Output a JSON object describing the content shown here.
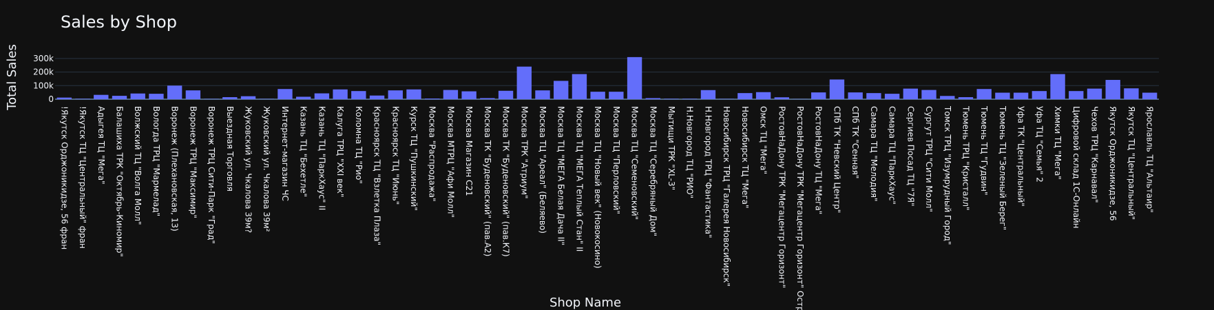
{
  "chart_data": {
    "type": "bar",
    "title": "Sales by Shop",
    "xlabel": "Shop Name",
    "ylabel": "Total Sales",
    "ylim": [
      0,
      355000
    ],
    "yticks": [
      0,
      100000,
      200000,
      300000
    ],
    "yticklabels": [
      "0",
      "100k",
      "200k",
      "300k"
    ],
    "colors": {
      "bar": "#636efa",
      "background": "#111111",
      "grid": "#283442",
      "text": "#f2f5fa"
    },
    "categories": [
      "!Якутск Орджоникидзе, 56 фран",
      "!Якутск ТЦ \"Центральный\" фран",
      "Адыгея ТЦ \"Мега\"",
      "Балашиха ТРК \"Октябрь-Киномир\"",
      "Волжский ТЦ \"Волга Молл\"",
      "Вологда ТРЦ \"Мармелад\"",
      "Воронеж (Плехановская, 13)",
      "Воронеж ТРЦ \"Максимир\"",
      "Воронеж ТРЦ Сити-Парк \"Град\"",
      "Выездная Торговля",
      "Жуковский ул. Чкалова 39м?",
      "Жуковский ул. Чкалова 39м²",
      "Интернет-магазин ЧС",
      "Казань ТЦ \"Бехетле\"",
      "Казань ТЦ \"ПаркХаус\" II",
      "Калуга ТРЦ \"XXI век\"",
      "Коломна ТЦ \"Рио\"",
      "Красноярск ТЦ \"Взлетка Плаза\"",
      "Красноярск ТЦ \"Июнь\"",
      "Курск ТЦ \"Пушкинский\"",
      "Москва \"Распродажа\"",
      "Москва МТРЦ \"Афи Молл\"",
      "Москва Магазин С21",
      "Москва ТК \"Буденовский\" (пав.А2)",
      "Москва ТК \"Буденовский\" (пав.К7)",
      "Москва ТРК \"Атриум\"",
      "Москва ТЦ \"Ареал\" (Беляево)",
      "Москва ТЦ \"МЕГА Белая Дача II\"",
      "Москва ТЦ \"МЕГА Теплый Стан\" II",
      "Москва ТЦ \"Новый век\" (Новокосино)",
      "Москва ТЦ \"Перловский\"",
      "Москва ТЦ \"Семеновский\"",
      "Москва ТЦ \"Серебряный Дом\"",
      "Мытищи ТРК \"XL-3\"",
      "Н.Новгород ТЦ \"РИО\"",
      "Н.Новгород ТРЦ \"Фантастика\"",
      "Новосибирск ТРЦ \"Галерея Новосибирск\"",
      "Новосибирск ТЦ \"Мега\"",
      "Омск ТЦ \"Мега\"",
      "РостовНаДону ТРК \"Мегацентр Горизонт\"",
      "РостовНаДону ТРК \"Мегацентр Горизонт\" Остро",
      "РостовНаДону ТЦ \"Мега\"",
      "СПб ТК \"Невский Центр\"",
      "СПб ТК \"Сенная\"",
      "Самара ТЦ \"Мелодия\"",
      "Самара ТЦ \"ПаркХаус\"",
      "Сергиев Посад ТЦ \"7Я\"",
      "Сургут ТРЦ \"Сити Молл\"",
      "Томск ТРЦ \"Изумрудный Город\"",
      "Тюмень ТРЦ \"Кристалл\"",
      "Тюмень ТЦ \"Гудвин\"",
      "Тюмень ТЦ \"Зеленый Берег\"",
      "Уфа ТК \"Центральный\"",
      "Уфа ТЦ \"Семья\" 2",
      "Химки ТЦ \"Мега\"",
      "Цифровой склад 1С-Онлайн",
      "Чехов ТРЦ \"Карнавал\"",
      "Якутск Орджоникидзе, 56",
      "Якутск ТЦ \"Центральный\"",
      "Ярославль ТЦ \"Альтаир\""
    ],
    "values": [
      12000,
      3000,
      32000,
      25000,
      42000,
      40000,
      100000,
      65000,
      2000,
      15000,
      22000,
      2000,
      75000,
      18000,
      43000,
      72000,
      60000,
      27000,
      65000,
      72000,
      5000,
      68000,
      58000,
      8000,
      62000,
      240000,
      65000,
      135000,
      185000,
      55000,
      55000,
      310000,
      8000,
      3000,
      3000,
      67000,
      2000,
      45000,
      52000,
      14000,
      1000,
      50000,
      145000,
      50000,
      45000,
      40000,
      78000,
      68000,
      24000,
      15000,
      75000,
      48000,
      48000,
      60000,
      185000,
      60000,
      78000,
      142000,
      80000,
      48000
    ]
  }
}
